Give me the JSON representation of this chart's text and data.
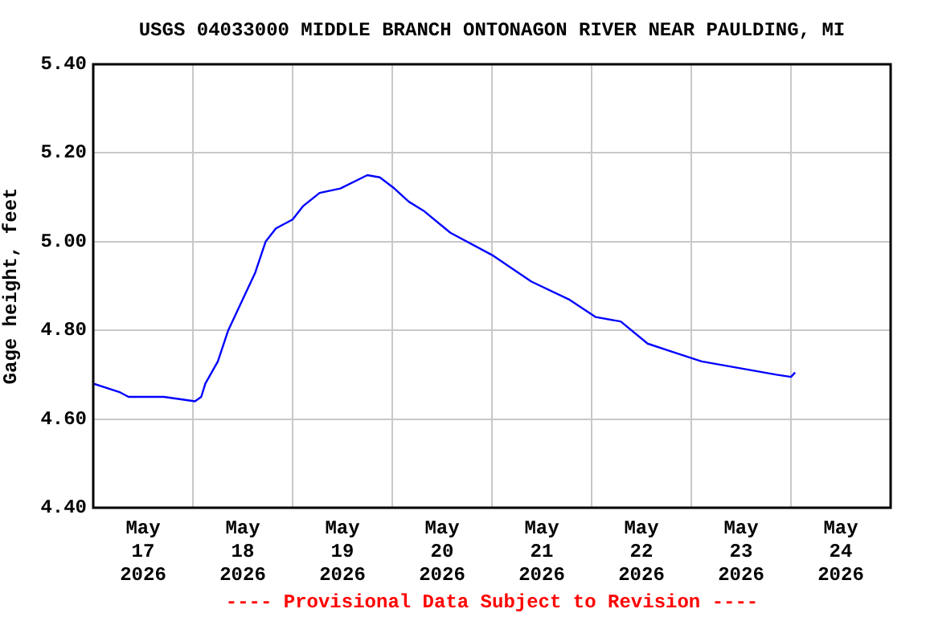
{
  "chart_data": {
    "type": "line",
    "title": "USGS 04033000 MIDDLE BRANCH ONTONAGON RIVER NEAR PAULDING, MI",
    "ylabel": "Gage height, feet",
    "annotations": [
      "---- Provisional Data Subject to Revision ----"
    ],
    "x": [
      "2026-05-17T00:00",
      "2026-05-17T06:30",
      "2026-05-17T08:30",
      "2026-05-17T17:00",
      "2026-05-18T00:30",
      "2026-05-18T02:00",
      "2026-05-18T03:00",
      "2026-05-18T06:00",
      "2026-05-18T08:30",
      "2026-05-18T12:30",
      "2026-05-18T15:00",
      "2026-05-18T17:30",
      "2026-05-18T20:00",
      "2026-05-19T00:00",
      "2026-05-19T02:30",
      "2026-05-19T06:30",
      "2026-05-19T11:30",
      "2026-05-19T18:00",
      "2026-05-19T21:00",
      "2026-05-20T00:30",
      "2026-05-20T04:00",
      "2026-05-20T07:30",
      "2026-05-20T14:00",
      "2026-05-21T00:00",
      "2026-05-21T09:30",
      "2026-05-21T18:30",
      "2026-05-22T01:00",
      "2026-05-22T07:00",
      "2026-05-22T13:30",
      "2026-05-22T20:00",
      "2026-05-23T02:30",
      "2026-05-23T11:30",
      "2026-05-23T20:30",
      "2026-05-24T00:00",
      "2026-05-24T01:00"
    ],
    "series": [
      {
        "color": "#0000ff",
        "values": [
          4.68,
          4.66,
          4.65,
          4.65,
          4.64,
          4.65,
          4.68,
          4.73,
          4.8,
          4.88,
          4.93,
          5.0,
          5.03,
          5.05,
          5.08,
          5.11,
          5.12,
          5.15,
          5.145,
          5.12,
          5.09,
          5.07,
          5.02,
          4.97,
          4.91,
          4.87,
          4.83,
          4.82,
          4.77,
          4.75,
          4.73,
          4.715,
          4.7,
          4.695,
          4.705
        ]
      }
    ],
    "xlim": [
      "2026-05-17T00:00",
      "2026-05-25T00:00"
    ],
    "xticks": [
      {
        "value": "2026-05-17T00:00",
        "label": null
      },
      {
        "value": "2026-05-17T12:00",
        "label": "May 17 2026"
      },
      {
        "value": "2026-05-18T00:00",
        "label": null
      },
      {
        "value": "2026-05-18T12:00",
        "label": "May 18 2026"
      },
      {
        "value": "2026-05-19T00:00",
        "label": null
      },
      {
        "value": "2026-05-19T12:00",
        "label": "May 19 2026"
      },
      {
        "value": "2026-05-20T00:00",
        "label": null
      },
      {
        "value": "2026-05-20T12:00",
        "label": "May 20 2026"
      },
      {
        "value": "2026-05-21T00:00",
        "label": null
      },
      {
        "value": "2026-05-21T12:00",
        "label": "May 21 2026"
      },
      {
        "value": "2026-05-22T00:00",
        "label": null
      },
      {
        "value": "2026-05-22T12:00",
        "label": "May 22 2026"
      },
      {
        "value": "2026-05-23T00:00",
        "label": null
      },
      {
        "value": "2026-05-23T12:00",
        "label": "May 23 2026"
      },
      {
        "value": "2026-05-24T00:00",
        "label": null
      },
      {
        "value": "2026-05-24T12:00",
        "label": "May 24 2026"
      },
      {
        "value": "2026-05-25T00:00",
        "label": null
      }
    ],
    "ylim": [
      4.4,
      5.4
    ],
    "yticks": [
      {
        "value": 4.4,
        "label": "4.40"
      },
      {
        "value": 4.6,
        "label": "4.60"
      },
      {
        "value": 4.8,
        "label": "4.80"
      },
      {
        "value": 5.0,
        "label": "5.00"
      },
      {
        "value": 5.2,
        "label": "5.20"
      },
      {
        "value": 5.4,
        "label": "5.40"
      }
    ],
    "grid": true,
    "legend": false,
    "marker": "none",
    "line_style": "solid"
  }
}
